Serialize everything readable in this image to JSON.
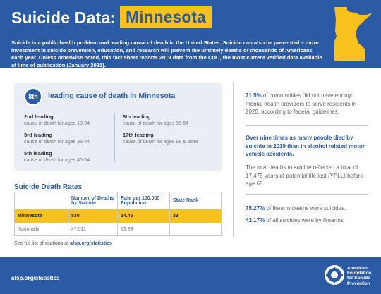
{
  "header": {
    "title": "Suicide Data:",
    "state": "Minnesota",
    "intro": "Suicide is a public health problem and leading cause of death in the United States. Suicide can also be prevented – more investment in suicide prevention, education, and research will prevent the untimely deaths of thousands of Americans each year. Unless otherwise noted, this fact sheet reports 2019 data from the CDC, the most current verified data available at time of publication (January 2021)."
  },
  "leading": {
    "badge": "8th",
    "heading": "leading cause of death in Minnesota",
    "ranks": [
      {
        "rank": "2nd leading",
        "desc": "cause of death for ages 10-34"
      },
      {
        "rank": "3rd leading",
        "desc": "cause of death for ages 35-44"
      },
      {
        "rank": "5th leading",
        "desc": "cause of death for ages 45-54"
      },
      {
        "rank": "8th leading",
        "desc": "cause of death for ages 55-64"
      },
      {
        "rank": "17th leading",
        "desc": "cause of death for ages 65 & older"
      }
    ]
  },
  "rates": {
    "title": "Suicide Death Rates",
    "columns": [
      "",
      "Number of Deaths by Suicide",
      "Rate per 100,000 Population",
      "State Rank"
    ],
    "rows": [
      [
        "Minnesota",
        "830",
        "14.46",
        "33"
      ],
      [
        "Nationally",
        "47,511",
        "13.93",
        ""
      ]
    ]
  },
  "citation": {
    "text": "See full list of citations at ",
    "link": "afsp.org/statistics"
  },
  "stats": {
    "s1_hl": "71.5%",
    "s1_rest": " of communities did not have enough mental health providers to serve residents in 2020, according to federal guidelines.",
    "s2": "Over nine times as many people died by suicide in 2019 than in alcohol related motor vehicle accidents.",
    "s3": "The total deaths to suicide reflected a total of 17,475 years of potential life lost (YPLL) before age 65.",
    "s4_hl": "75.27%",
    "s4_rest": " of firearm deaths were suicides.",
    "s5_hl": "42.17%",
    "s5_rest": " of all suicides were by firearms."
  },
  "footer": {
    "link": "afsp.org/statistics",
    "org_line1": "American",
    "org_line2": "Foundation",
    "org_line3": "for Suicide",
    "org_line4": "Prevention"
  },
  "colors": {
    "brand_blue": "#2c5ba6",
    "accent_yellow": "#f7c21e"
  }
}
